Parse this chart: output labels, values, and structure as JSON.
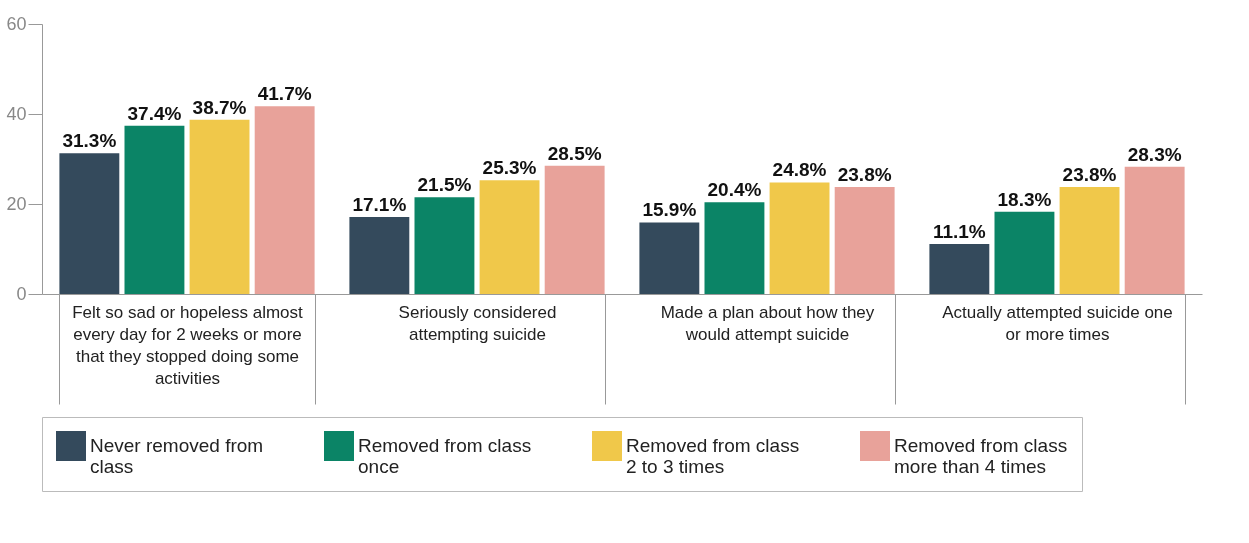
{
  "chart_data": {
    "type": "bar",
    "categories": [
      "Felt so sad or hopeless almost every day for 2 weeks or more that they stopped doing some activities",
      "Seriously considered attempting suicide",
      "Made a plan about how they would attempt suicide",
      "Actually attempted suicide one or more times"
    ],
    "series": [
      {
        "name": "Never removed from class",
        "color": "#344a5c",
        "values": [
          31.3,
          17.1,
          15.9,
          11.1
        ],
        "value_labels": [
          "31.3%",
          "17.1%",
          "15.9%",
          "11.1%"
        ]
      },
      {
        "name": "Removed from class once",
        "color": "#0b8466",
        "values": [
          37.4,
          21.5,
          20.4,
          18.3
        ],
        "value_labels": [
          "37.4%",
          "21.5%",
          "20.4%",
          "18.3%"
        ]
      },
      {
        "name": "Removed from class 2 to 3 times",
        "color": "#f0c84a",
        "values": [
          38.7,
          25.3,
          24.8,
          23.8
        ],
        "value_labels": [
          "38.7%",
          "25.3%",
          "24.8%",
          "23.8%"
        ]
      },
      {
        "name": "Removed from class more than 4 times",
        "color": "#e8a29a",
        "values": [
          41.7,
          28.5,
          23.8,
          28.3
        ],
        "value_labels": [
          "41.7%",
          "28.5%",
          "23.8%",
          "28.3%"
        ]
      }
    ],
    "ylim": [
      0,
      60
    ],
    "yticks": [
      0,
      20,
      40,
      60
    ],
    "grid": false,
    "legend": "bottom"
  }
}
